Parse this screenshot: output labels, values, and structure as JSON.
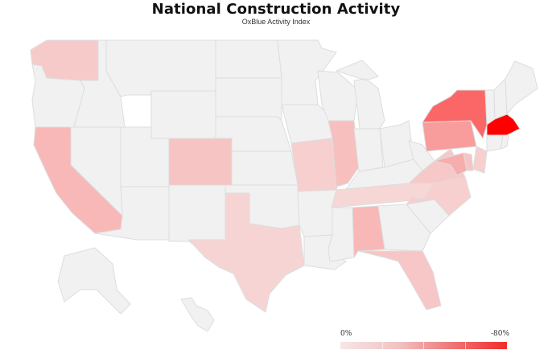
{
  "header": {
    "title": "National Construction Activity",
    "subtitle": "OxBlue Activity Index"
  },
  "legend": {
    "min_label": "0%",
    "max_label": "-80%"
  },
  "colors": {
    "neutral": "#f1f1f1",
    "border": "#dddddd",
    "scale_low": "#f6e6e6",
    "scale_high": "#ff0000"
  },
  "map_data": {
    "type": "choropleth",
    "region": "United States",
    "metric_range": [
      0,
      -80
    ],
    "states": [
      {
        "code": "WA",
        "level": 0.12
      },
      {
        "code": "OR",
        "level": 0
      },
      {
        "code": "CA",
        "level": 0.2
      },
      {
        "code": "NV",
        "level": 0
      },
      {
        "code": "ID",
        "level": 0
      },
      {
        "code": "MT",
        "level": 0
      },
      {
        "code": "WY",
        "level": 0
      },
      {
        "code": "UT",
        "level": 0
      },
      {
        "code": "AZ",
        "level": 0
      },
      {
        "code": "CO",
        "level": 0.15
      },
      {
        "code": "NM",
        "level": 0
      },
      {
        "code": "ND",
        "level": 0
      },
      {
        "code": "SD",
        "level": 0
      },
      {
        "code": "NE",
        "level": 0
      },
      {
        "code": "KS",
        "level": 0
      },
      {
        "code": "OK",
        "level": 0
      },
      {
        "code": "TX",
        "level": 0.08
      },
      {
        "code": "MN",
        "level": 0
      },
      {
        "code": "IA",
        "level": 0
      },
      {
        "code": "MO",
        "level": 0.1
      },
      {
        "code": "AR",
        "level": 0
      },
      {
        "code": "LA",
        "level": 0
      },
      {
        "code": "WI",
        "level": 0
      },
      {
        "code": "IL",
        "level": 0.17
      },
      {
        "code": "MI",
        "level": 0
      },
      {
        "code": "IN",
        "level": 0
      },
      {
        "code": "OH",
        "level": 0
      },
      {
        "code": "KY",
        "level": 0
      },
      {
        "code": "TN",
        "level": 0.07
      },
      {
        "code": "MS",
        "level": 0
      },
      {
        "code": "AL",
        "level": 0.2
      },
      {
        "code": "GA",
        "level": 0
      },
      {
        "code": "FL",
        "level": 0.14
      },
      {
        "code": "SC",
        "level": 0
      },
      {
        "code": "NC",
        "level": 0.1
      },
      {
        "code": "VA",
        "level": 0.13
      },
      {
        "code": "WV",
        "level": 0
      },
      {
        "code": "PA",
        "level": 0.32
      },
      {
        "code": "NY",
        "level": 0.55
      },
      {
        "code": "VT",
        "level": 0
      },
      {
        "code": "NH",
        "level": 0
      },
      {
        "code": "ME",
        "level": 0
      },
      {
        "code": "MA",
        "level": 1.0
      },
      {
        "code": "CT",
        "level": 0
      },
      {
        "code": "RI",
        "level": 0
      },
      {
        "code": "NJ",
        "level": 0.1
      },
      {
        "code": "DE",
        "level": 0.15
      },
      {
        "code": "MD",
        "level": 0.25
      },
      {
        "code": "AK",
        "level": 0
      },
      {
        "code": "HI",
        "level": 0
      }
    ]
  }
}
